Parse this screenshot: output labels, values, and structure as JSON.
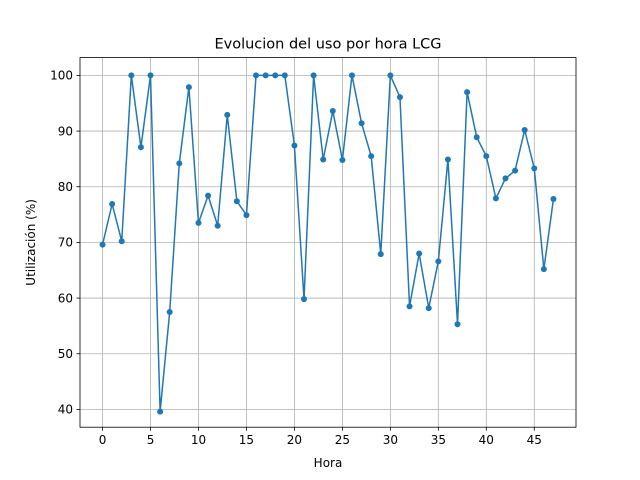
{
  "chart_data": {
    "type": "line",
    "title": "Evolucion del uso por hora LCG",
    "xlabel": "Hora",
    "ylabel": "Utilización (%)",
    "xlim": [
      -2.35,
      49.35
    ],
    "ylim": [
      36.8,
      103.2
    ],
    "xticks": [
      0,
      5,
      10,
      15,
      20,
      25,
      30,
      35,
      40,
      45
    ],
    "yticks": [
      40,
      50,
      60,
      70,
      80,
      90,
      100
    ],
    "grid": true,
    "legend": "none",
    "series": [
      {
        "color": "#1f77b4",
        "marker": "circle",
        "x": [
          0,
          1,
          2,
          3,
          4,
          5,
          6,
          7,
          8,
          9,
          10,
          11,
          12,
          13,
          14,
          15,
          16,
          17,
          18,
          19,
          20,
          21,
          22,
          23,
          24,
          25,
          26,
          27,
          28,
          29,
          30,
          31,
          32,
          33,
          34,
          35,
          36,
          37,
          38,
          39,
          40,
          41,
          42,
          43,
          44,
          45,
          46,
          47
        ],
        "y": [
          69.6,
          76.9,
          70.2,
          100,
          87.1,
          100,
          39.6,
          57.5,
          84.2,
          97.9,
          73.5,
          78.4,
          73.0,
          92.9,
          77.4,
          74.9,
          100,
          100,
          100,
          100,
          87.4,
          59.8,
          100,
          84.9,
          93.6,
          84.8,
          100,
          91.4,
          85.5,
          67.9,
          100,
          96.1,
          58.5,
          68.0,
          58.2,
          66.6,
          84.9,
          55.3,
          97.0,
          88.9,
          85.5,
          77.9,
          81.5,
          82.9,
          90.2,
          83.3,
          65.2,
          77.8
        ]
      }
    ]
  }
}
